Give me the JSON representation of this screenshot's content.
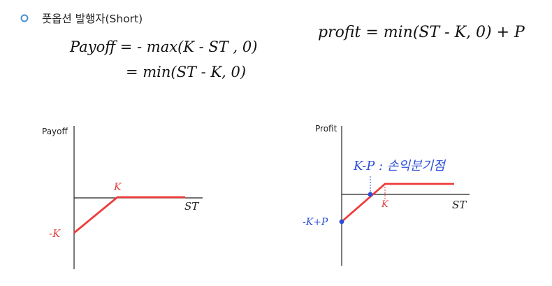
{
  "header": {
    "bullet_icon": "hollow-circle-bullet-icon",
    "title": "풋옵션 발행자(Short)"
  },
  "formulas": {
    "payoff_line1": "Payoff = - max(K - ST , 0)",
    "payoff_line2": "= min(ST - K, 0)",
    "profit": "profit = min(ST - K, 0) + P"
  },
  "colors": {
    "payoff_line": "#ee3b3b",
    "handwriting": "#111111",
    "annotation_blue": "#2b4fd8",
    "axis": "#222222"
  },
  "chart_data": [
    {
      "type": "line",
      "ylabel": "Payoff",
      "xlabel": "ST",
      "series": [
        {
          "x": [
            "0",
            "K",
            "∞"
          ],
          "y": [
            "-K",
            "0",
            "0"
          ]
        }
      ],
      "annotations": {
        "k_label": "K",
        "neg_k_label": "-K"
      }
    },
    {
      "type": "line",
      "ylabel": "Profit",
      "xlabel": "ST",
      "series": [
        {
          "x": [
            "0",
            "K-P",
            "K",
            "∞"
          ],
          "y": [
            "-K+P",
            "0",
            "P",
            "P"
          ]
        }
      ],
      "annotations": {
        "breakeven_label": "K-P : 손익분기점",
        "k_label": "K",
        "intercept_label": "-K+P"
      }
    }
  ]
}
